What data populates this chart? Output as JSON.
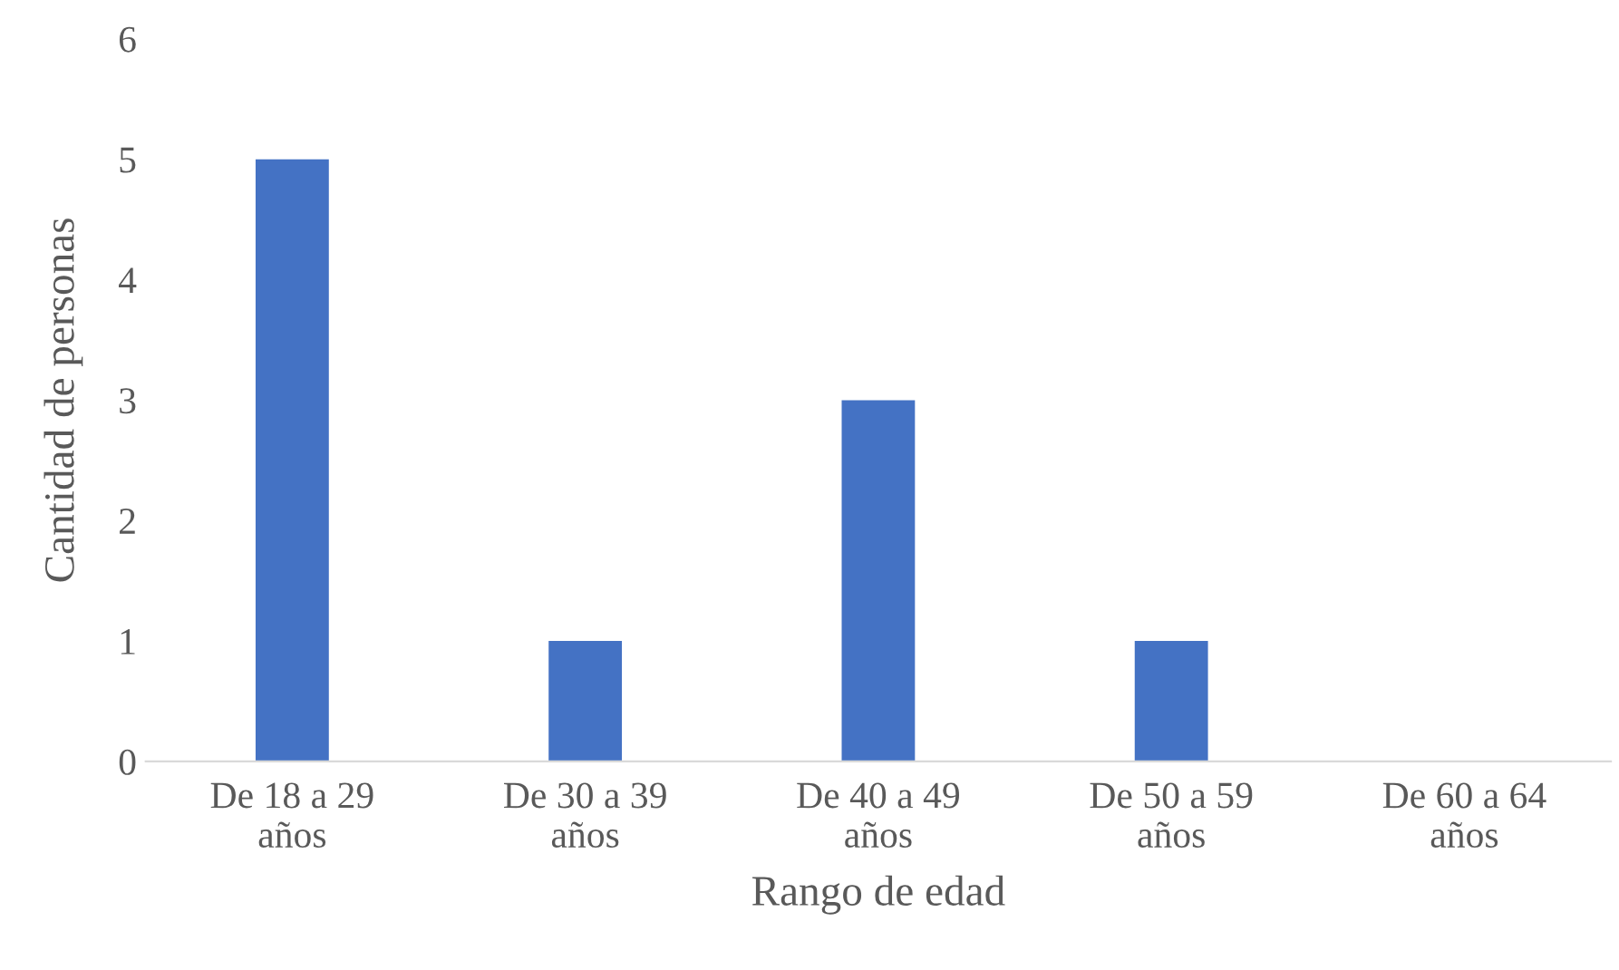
{
  "chart_data": {
    "type": "bar",
    "xlabel": "Rango de edad",
    "ylabel": "Cantidad de personas",
    "categories": [
      "De 18 a 29\naños",
      "De 30 a 39\naños",
      "De 40 a 49\naños",
      "De 50 a 59\naños",
      "De 60 a 64\naños"
    ],
    "values": [
      5,
      1,
      3,
      1,
      0
    ],
    "color": "#4472c4",
    "ylim": [
      0,
      6
    ],
    "yticks": [
      0,
      1,
      2,
      3,
      4,
      5,
      6
    ],
    "grid": false,
    "legend": false
  }
}
